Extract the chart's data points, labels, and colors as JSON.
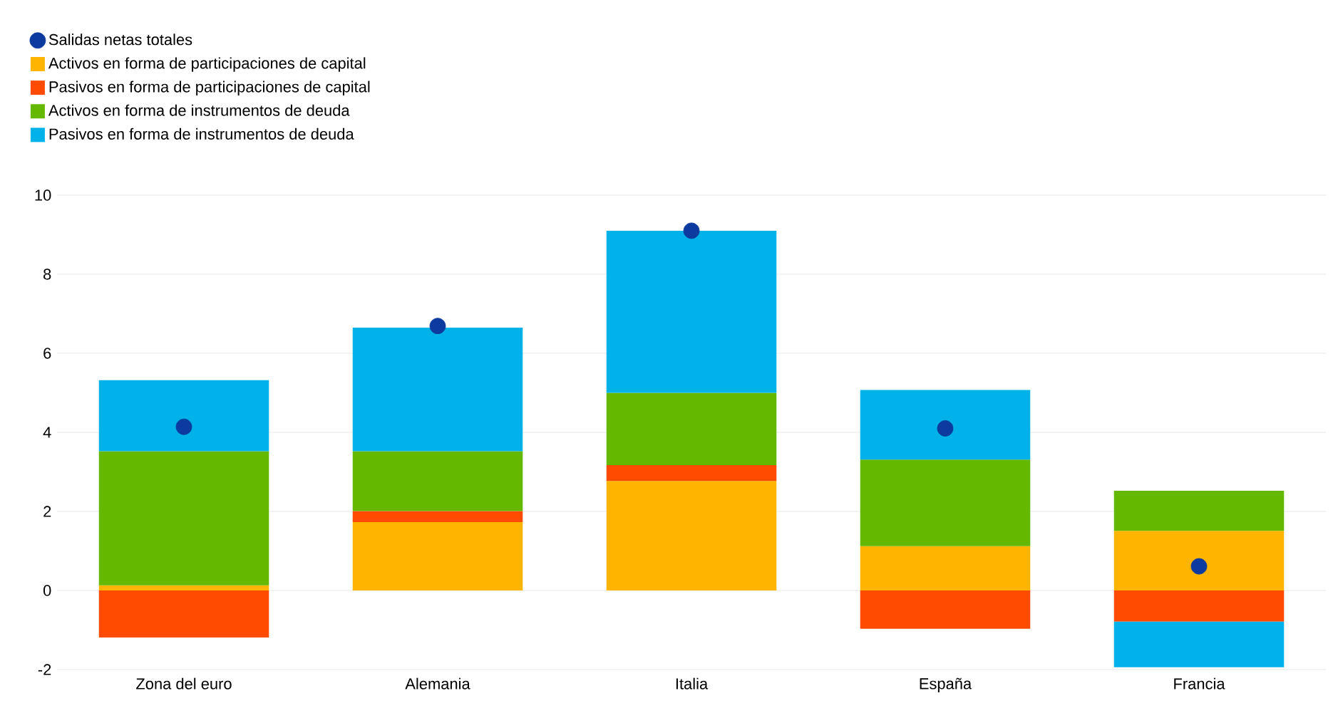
{
  "chart_data": {
    "type": "bar",
    "stacked": true,
    "categories": [
      "Zona del euro",
      "Alemania",
      "Italia",
      "España",
      "Francia"
    ],
    "series": [
      {
        "name": "Salidas netas totales",
        "type": "scatter",
        "marker": "circle",
        "color": "#0d3a9e",
        "values": [
          4.14,
          6.69,
          9.1,
          4.1,
          0.61
        ]
      },
      {
        "name": "Activos en forma de participaciones de capital",
        "color": "#ffb400",
        "values": [
          0.13,
          1.73,
          2.77,
          1.12,
          1.51
        ]
      },
      {
        "name": "Pasivos en forma de participaciones de capital",
        "color": "#ff4b00",
        "values": [
          -1.19,
          0.28,
          0.4,
          -0.97,
          -0.79
        ]
      },
      {
        "name": "Activos en forma de instrumentos de deuda",
        "color": "#65b800",
        "values": [
          3.39,
          1.51,
          1.83,
          2.19,
          1.01
        ]
      },
      {
        "name": "Pasivos en forma de instrumentos de deuda",
        "color": "#00b1ea",
        "values": [
          1.8,
          3.13,
          4.1,
          1.76,
          -1.15
        ]
      }
    ],
    "ylim": [
      -2,
      10
    ],
    "yticks": [
      -2,
      0,
      2,
      4,
      6,
      8,
      10
    ],
    "grid": "y",
    "legend": "top left"
  }
}
